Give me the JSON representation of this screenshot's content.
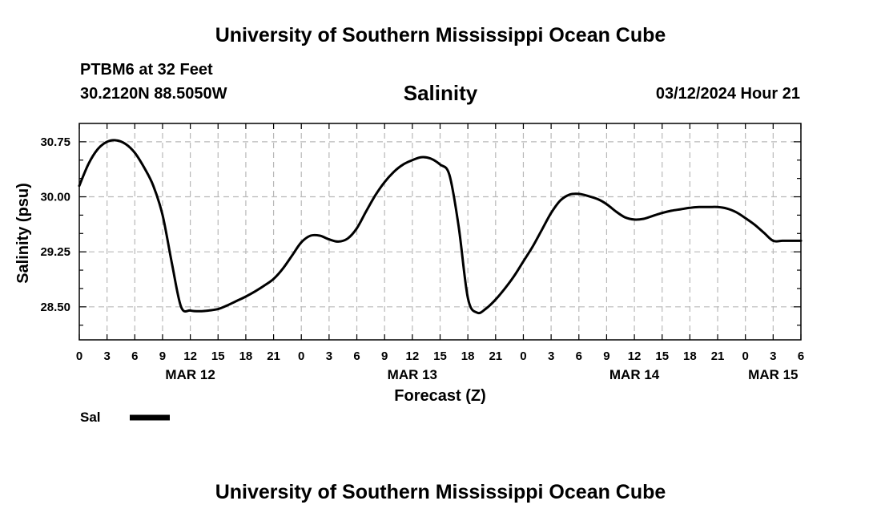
{
  "header": {
    "title": "University of Southern Mississippi Ocean Cube",
    "station": "PTBM6 at 32 Feet",
    "coords": "30.2120N  88.5050W",
    "parameter": "Salinity",
    "datetime": "03/12/2024 Hour 21"
  },
  "footer": {
    "title": "University of Southern Mississippi Ocean Cube"
  },
  "chart_data": {
    "type": "line",
    "title": "Salinity",
    "xlabel": "Forecast (Z)",
    "ylabel": "Salinity (psu)",
    "xlim": [
      0,
      78
    ],
    "ylim": [
      28.05,
      31.0
    ],
    "grid": true,
    "x_ticks": [
      0,
      3,
      6,
      9,
      12,
      15,
      18,
      21,
      24,
      27,
      30,
      33,
      36,
      39,
      42,
      45,
      48,
      51,
      54,
      57,
      60,
      63,
      66,
      69,
      72,
      75,
      78
    ],
    "x_tick_labels": [
      "0",
      "3",
      "6",
      "9",
      "12",
      "15",
      "18",
      "21",
      "0",
      "3",
      "6",
      "9",
      "12",
      "15",
      "18",
      "21",
      "0",
      "3",
      "6",
      "9",
      "12",
      "15",
      "18",
      "21",
      "0",
      "3",
      "6"
    ],
    "day_labels": [
      {
        "x": 12,
        "label": "MAR 12"
      },
      {
        "x": 36,
        "label": "MAR 13"
      },
      {
        "x": 60,
        "label": "MAR 14"
      },
      {
        "x": 75,
        "label": "MAR 15"
      }
    ],
    "y_ticks": [
      28.5,
      29.25,
      30.0,
      30.75
    ],
    "y_tick_labels": [
      "28.50",
      "29.25",
      "30.00",
      "30.75"
    ],
    "y_minor_ticks": [
      28.25,
      28.75,
      29.0,
      29.5,
      29.75,
      30.25,
      30.5
    ],
    "legend": [
      {
        "name": "Sal",
        "color": "#000000"
      }
    ],
    "series": [
      {
        "name": "Sal",
        "color": "#000000",
        "x": [
          0,
          1,
          2,
          3,
          4,
          5,
          6,
          7,
          8,
          9,
          10,
          11,
          12,
          13,
          14,
          15,
          16,
          17,
          18,
          19,
          20,
          21,
          22,
          23,
          24,
          25,
          26,
          27,
          28,
          29,
          30,
          31,
          32,
          33,
          34,
          35,
          36,
          37,
          38,
          39,
          40,
          41,
          42,
          43,
          44,
          45,
          46,
          47,
          48,
          49,
          50,
          51,
          52,
          53,
          54,
          55,
          56,
          57,
          58,
          59,
          60,
          61,
          62,
          63,
          64,
          65,
          66,
          67,
          68,
          69,
          70,
          71,
          72,
          73,
          74,
          75,
          76,
          77,
          78
        ],
        "values": [
          30.15,
          30.45,
          30.65,
          30.75,
          30.77,
          30.72,
          30.6,
          30.4,
          30.15,
          29.75,
          29.1,
          28.5,
          28.45,
          28.44,
          28.45,
          28.47,
          28.52,
          28.58,
          28.64,
          28.71,
          28.79,
          28.88,
          29.02,
          29.2,
          29.38,
          29.47,
          29.47,
          29.42,
          29.39,
          29.43,
          29.57,
          29.8,
          30.02,
          30.2,
          30.34,
          30.44,
          30.5,
          30.54,
          30.52,
          30.44,
          30.3,
          29.6,
          28.62,
          28.42,
          28.48,
          28.6,
          28.75,
          28.92,
          29.12,
          29.32,
          29.55,
          29.78,
          29.95,
          30.03,
          30.04,
          30.01,
          29.97,
          29.9,
          29.8,
          29.72,
          29.69,
          29.7,
          29.74,
          29.78,
          29.81,
          29.83,
          29.85,
          29.86,
          29.86,
          29.86,
          29.84,
          29.79,
          29.71,
          29.62,
          29.51,
          29.4,
          29.4,
          29.4,
          29.4
        ]
      }
    ]
  }
}
